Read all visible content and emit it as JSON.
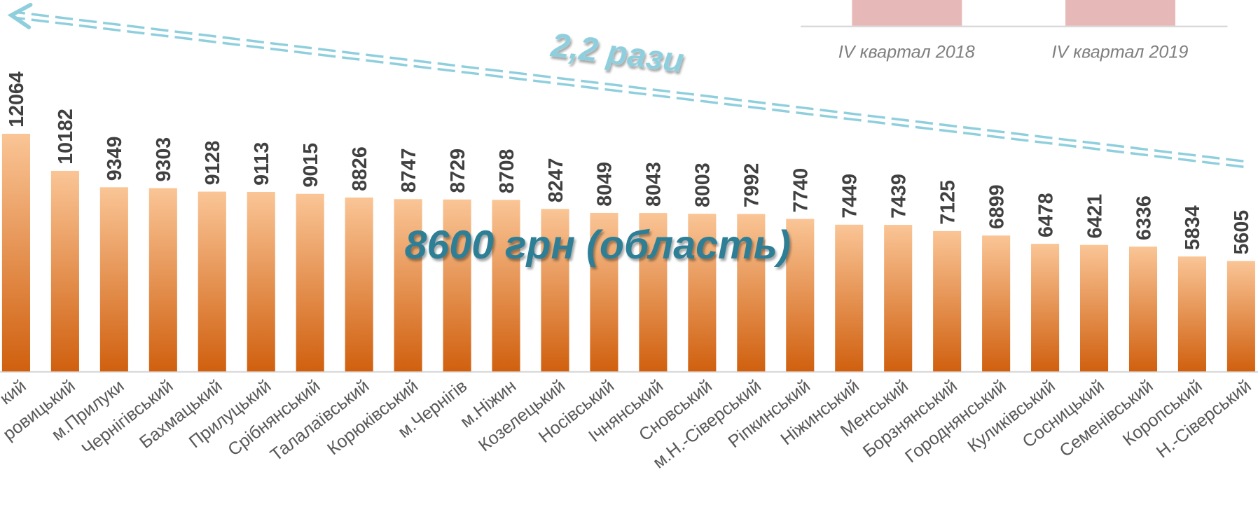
{
  "chart_data": {
    "type": "bar",
    "categories": [
      "кий",
      "ровицький",
      "м.Прилуки",
      "Чернігівський",
      "Бахмацький",
      "Прилуцький",
      "Срібнянський",
      "Талалаївський",
      "Корюківський",
      "м.Чернігів",
      "м.Ніжин",
      "Козелецький",
      "Носівський",
      "Ічнянський",
      "Сновський",
      "м.Н.-Сіверський",
      "Ріпкинський",
      "Ніжинський",
      "Менський",
      "Борзнянський",
      "Городнянський",
      "Куликівський",
      "Сосницький",
      "Семенівський",
      "Коропський",
      "Н.-Сіверський"
    ],
    "values": [
      12064,
      10182,
      9349,
      9303,
      9128,
      9113,
      9015,
      8826,
      8747,
      8729,
      8708,
      8247,
      8049,
      8043,
      8003,
      7992,
      7740,
      7449,
      7439,
      7125,
      6899,
      6478,
      6421,
      6336,
      5834,
      5605
    ],
    "ylim": [
      0,
      18000
    ],
    "color_top": "#fac596",
    "color_bottom": "#d0600f",
    "legend": [
      {
        "name": "IV квартал 2018",
        "color": "#e6b8b7"
      },
      {
        "name": "IV квартал 2019",
        "color": "#e6b8b7"
      }
    ],
    "annotations": [
      "2,2 рази",
      "8600 грн (область)"
    ]
  }
}
